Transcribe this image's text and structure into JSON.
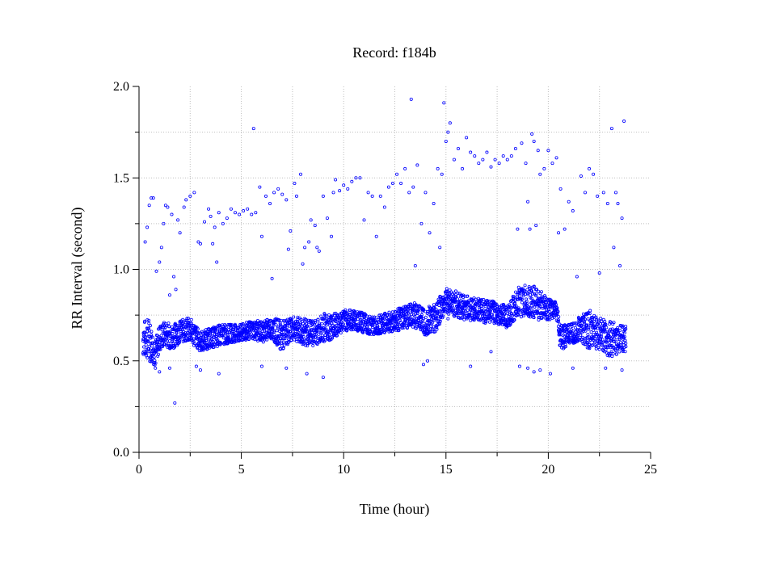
{
  "chart_data": {
    "type": "scatter",
    "title": "Record:  f184b",
    "xlabel": "Time (hour)",
    "ylabel": "RR Interval (second)",
    "xlim": [
      0,
      25
    ],
    "ylim": [
      0.0,
      2.0
    ],
    "xticks": [
      0,
      5,
      10,
      15,
      20,
      25
    ],
    "xtick_labels": [
      "0",
      "5",
      "10",
      "15",
      "20",
      "25"
    ],
    "yticks": [
      0.0,
      0.5,
      1.0,
      1.5,
      2.0
    ],
    "ytick_labels": [
      "0.0",
      "0.5",
      "1.0",
      "1.5",
      "2.0"
    ],
    "grid": true,
    "marker": "open-circle",
    "color": "#0000ff",
    "series": [
      {
        "name": "",
        "baseline_band": [
          [
            0.2,
            0.52,
            0.72
          ],
          [
            0.5,
            0.5,
            0.74
          ],
          [
            0.8,
            0.47,
            0.62
          ],
          [
            1.0,
            0.55,
            0.7
          ],
          [
            1.3,
            0.58,
            0.72
          ],
          [
            1.6,
            0.56,
            0.7
          ],
          [
            2.0,
            0.6,
            0.72
          ],
          [
            2.5,
            0.6,
            0.74
          ],
          [
            3.0,
            0.55,
            0.66
          ],
          [
            3.5,
            0.57,
            0.68
          ],
          [
            4.0,
            0.58,
            0.7
          ],
          [
            4.5,
            0.6,
            0.7
          ],
          [
            5.0,
            0.6,
            0.7
          ],
          [
            5.5,
            0.62,
            0.72
          ],
          [
            6.0,
            0.6,
            0.72
          ],
          [
            6.5,
            0.62,
            0.74
          ],
          [
            7.0,
            0.55,
            0.72
          ],
          [
            7.5,
            0.62,
            0.74
          ],
          [
            8.0,
            0.58,
            0.74
          ],
          [
            8.5,
            0.58,
            0.72
          ],
          [
            9.0,
            0.6,
            0.76
          ],
          [
            9.5,
            0.62,
            0.76
          ],
          [
            10.0,
            0.66,
            0.78
          ],
          [
            10.5,
            0.67,
            0.78
          ],
          [
            11.0,
            0.65,
            0.76
          ],
          [
            11.5,
            0.64,
            0.74
          ],
          [
            12.0,
            0.65,
            0.76
          ],
          [
            12.5,
            0.66,
            0.78
          ],
          [
            13.0,
            0.67,
            0.8
          ],
          [
            13.5,
            0.68,
            0.82
          ],
          [
            14.0,
            0.64,
            0.8
          ],
          [
            14.5,
            0.66,
            0.82
          ],
          [
            15.0,
            0.76,
            0.9
          ],
          [
            15.5,
            0.74,
            0.88
          ],
          [
            16.0,
            0.72,
            0.86
          ],
          [
            16.5,
            0.72,
            0.84
          ],
          [
            17.0,
            0.7,
            0.84
          ],
          [
            17.5,
            0.7,
            0.82
          ],
          [
            18.0,
            0.68,
            0.8
          ],
          [
            18.5,
            0.74,
            0.9
          ],
          [
            19.0,
            0.74,
            0.92
          ],
          [
            19.5,
            0.72,
            0.9
          ],
          [
            20.0,
            0.72,
            0.84
          ],
          [
            20.4,
            0.74,
            0.82
          ],
          [
            20.6,
            0.55,
            0.7
          ],
          [
            21.0,
            0.58,
            0.7
          ],
          [
            21.5,
            0.6,
            0.74
          ],
          [
            22.0,
            0.56,
            0.78
          ],
          [
            22.5,
            0.56,
            0.74
          ],
          [
            23.0,
            0.52,
            0.72
          ],
          [
            23.5,
            0.54,
            0.7
          ],
          [
            23.8,
            0.55,
            0.7
          ]
        ],
        "points": [
          [
            0.3,
            1.15
          ],
          [
            0.4,
            1.23
          ],
          [
            0.5,
            1.35
          ],
          [
            0.6,
            1.39
          ],
          [
            0.7,
            1.39
          ],
          [
            0.85,
            0.99
          ],
          [
            1.0,
            1.04
          ],
          [
            1.1,
            1.12
          ],
          [
            1.2,
            1.25
          ],
          [
            1.3,
            1.35
          ],
          [
            1.4,
            1.34
          ],
          [
            1.5,
            0.86
          ],
          [
            1.6,
            1.3
          ],
          [
            1.7,
            0.96
          ],
          [
            1.75,
            0.27
          ],
          [
            1.8,
            0.89
          ],
          [
            1.9,
            1.27
          ],
          [
            2.0,
            1.2
          ],
          [
            2.2,
            1.34
          ],
          [
            2.3,
            1.38
          ],
          [
            2.5,
            1.4
          ],
          [
            2.7,
            1.42
          ],
          [
            2.9,
            1.15
          ],
          [
            3.0,
            1.14
          ],
          [
            3.2,
            1.26
          ],
          [
            3.4,
            1.33
          ],
          [
            3.5,
            1.29
          ],
          [
            3.6,
            1.14
          ],
          [
            3.7,
            1.23
          ],
          [
            3.8,
            1.04
          ],
          [
            3.9,
            1.31
          ],
          [
            4.1,
            1.25
          ],
          [
            4.3,
            1.28
          ],
          [
            4.5,
            1.33
          ],
          [
            4.7,
            1.31
          ],
          [
            4.9,
            1.3
          ],
          [
            5.1,
            1.32
          ],
          [
            5.3,
            1.33
          ],
          [
            5.5,
            1.3
          ],
          [
            5.6,
            1.77
          ],
          [
            5.7,
            1.31
          ],
          [
            5.9,
            1.45
          ],
          [
            6.0,
            1.18
          ],
          [
            6.2,
            1.4
          ],
          [
            6.4,
            1.36
          ],
          [
            6.5,
            0.95
          ],
          [
            6.6,
            1.42
          ],
          [
            6.8,
            1.44
          ],
          [
            7.0,
            1.41
          ],
          [
            7.2,
            1.38
          ],
          [
            7.3,
            1.11
          ],
          [
            7.4,
            1.21
          ],
          [
            7.6,
            1.47
          ],
          [
            7.7,
            1.4
          ],
          [
            7.9,
            1.52
          ],
          [
            8.0,
            1.03
          ],
          [
            8.1,
            1.12
          ],
          [
            8.3,
            1.15
          ],
          [
            8.4,
            1.27
          ],
          [
            8.6,
            1.24
          ],
          [
            8.7,
            1.12
          ],
          [
            8.8,
            1.1
          ],
          [
            9.0,
            1.4
          ],
          [
            9.2,
            1.28
          ],
          [
            9.4,
            1.18
          ],
          [
            9.5,
            1.42
          ],
          [
            9.6,
            1.49
          ],
          [
            9.8,
            1.43
          ],
          [
            10.0,
            1.46
          ],
          [
            10.2,
            1.44
          ],
          [
            10.4,
            1.48
          ],
          [
            10.6,
            1.5
          ],
          [
            10.8,
            1.5
          ],
          [
            11.0,
            1.27
          ],
          [
            11.2,
            1.42
          ],
          [
            11.4,
            1.4
          ],
          [
            11.6,
            1.18
          ],
          [
            11.8,
            1.4
          ],
          [
            12.0,
            1.34
          ],
          [
            12.2,
            1.45
          ],
          [
            12.4,
            1.47
          ],
          [
            12.6,
            1.52
          ],
          [
            12.8,
            1.47
          ],
          [
            13.0,
            1.55
          ],
          [
            13.2,
            1.42
          ],
          [
            13.3,
            1.93
          ],
          [
            13.4,
            1.45
          ],
          [
            13.5,
            1.02
          ],
          [
            13.6,
            1.57
          ],
          [
            13.8,
            1.25
          ],
          [
            14.0,
            1.42
          ],
          [
            14.2,
            1.2
          ],
          [
            14.4,
            1.36
          ],
          [
            14.6,
            1.55
          ],
          [
            14.7,
            1.12
          ],
          [
            14.8,
            1.52
          ],
          [
            14.9,
            1.91
          ],
          [
            15.0,
            1.7
          ],
          [
            15.1,
            1.75
          ],
          [
            15.2,
            1.8
          ],
          [
            15.4,
            1.6
          ],
          [
            15.6,
            1.66
          ],
          [
            15.8,
            1.55
          ],
          [
            16.0,
            1.72
          ],
          [
            16.2,
            1.64
          ],
          [
            16.4,
            1.62
          ],
          [
            16.6,
            1.58
          ],
          [
            16.8,
            1.6
          ],
          [
            17.0,
            1.64
          ],
          [
            17.2,
            1.56
          ],
          [
            17.4,
            1.6
          ],
          [
            17.6,
            1.58
          ],
          [
            17.8,
            1.62
          ],
          [
            18.0,
            1.6
          ],
          [
            18.2,
            1.62
          ],
          [
            18.4,
            1.66
          ],
          [
            18.5,
            1.22
          ],
          [
            18.7,
            1.69
          ],
          [
            18.9,
            1.58
          ],
          [
            19.0,
            1.37
          ],
          [
            19.1,
            1.22
          ],
          [
            19.2,
            1.74
          ],
          [
            19.3,
            1.7
          ],
          [
            19.4,
            1.24
          ],
          [
            19.5,
            1.65
          ],
          [
            19.6,
            1.52
          ],
          [
            19.8,
            1.55
          ],
          [
            20.0,
            1.65
          ],
          [
            20.2,
            1.58
          ],
          [
            20.4,
            1.61
          ],
          [
            20.5,
            1.2
          ],
          [
            20.6,
            1.44
          ],
          [
            20.8,
            1.22
          ],
          [
            21.0,
            1.37
          ],
          [
            21.2,
            1.32
          ],
          [
            21.4,
            0.96
          ],
          [
            21.6,
            1.51
          ],
          [
            21.8,
            1.42
          ],
          [
            22.0,
            1.55
          ],
          [
            22.2,
            1.52
          ],
          [
            22.4,
            1.4
          ],
          [
            22.5,
            0.98
          ],
          [
            22.7,
            1.42
          ],
          [
            22.9,
            1.36
          ],
          [
            23.1,
            1.77
          ],
          [
            23.2,
            1.12
          ],
          [
            23.3,
            1.42
          ],
          [
            23.4,
            1.36
          ],
          [
            23.5,
            1.02
          ],
          [
            23.6,
            1.28
          ],
          [
            23.7,
            1.81
          ],
          [
            0.8,
            0.46
          ],
          [
            1.0,
            0.44
          ],
          [
            1.5,
            0.46
          ],
          [
            2.8,
            0.47
          ],
          [
            3.0,
            0.45
          ],
          [
            3.9,
            0.43
          ],
          [
            6.0,
            0.47
          ],
          [
            7.2,
            0.46
          ],
          [
            8.2,
            0.43
          ],
          [
            9.0,
            0.41
          ],
          [
            13.9,
            0.48
          ],
          [
            14.1,
            0.5
          ],
          [
            16.2,
            0.47
          ],
          [
            18.6,
            0.47
          ],
          [
            19.0,
            0.46
          ],
          [
            19.3,
            0.44
          ],
          [
            19.6,
            0.45
          ],
          [
            20.1,
            0.43
          ],
          [
            21.2,
            0.46
          ],
          [
            22.8,
            0.46
          ],
          [
            23.6,
            0.45
          ],
          [
            15.1,
            0.73
          ],
          [
            17.2,
            0.55
          ]
        ]
      }
    ]
  }
}
